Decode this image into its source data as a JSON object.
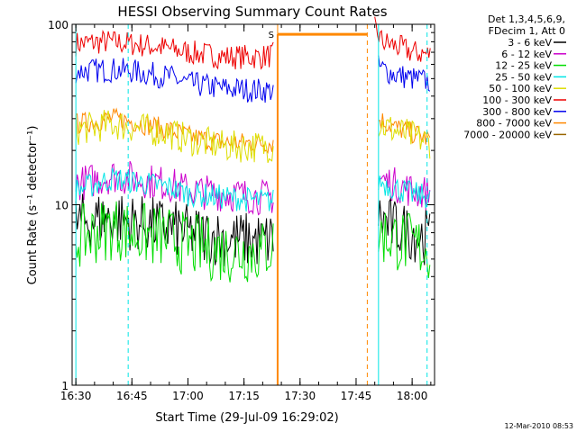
{
  "chart_data": {
    "type": "line",
    "title": "HESSI Observing Summary Count Rates",
    "xlabel": "Start Time (29-Jul-09 16:29:02)",
    "ylabel": "Count Rate (s⁻¹ detector⁻¹)",
    "yscale": "log",
    "ylim": [
      1,
      100
    ],
    "xlim": [
      "16:29",
      "18:06"
    ],
    "x_ticks": [
      "16:30",
      "16:45",
      "17:00",
      "17:15",
      "17:30",
      "17:45",
      "18:00"
    ],
    "y_ticks": [
      "1",
      "10",
      "100"
    ],
    "legend_header": [
      "Det 1,3,4,5,6,9,",
      "FDecim 1, Att 0"
    ],
    "legend_position": "right",
    "footer_date": "12-Mar-2010 08:53",
    "marker_label": "S",
    "legend": [
      {
        "name": "3 - 6 keV",
        "color": "#000000"
      },
      {
        "name": "6 - 12 keV",
        "color": "#cc00cc"
      },
      {
        "name": "12 - 25 keV",
        "color": "#00dd00"
      },
      {
        "name": "25 - 50 keV",
        "color": "#00e5e5"
      },
      {
        "name": "50 - 100 keV",
        "color": "#dddd00"
      },
      {
        "name": "100 - 300 keV",
        "color": "#ee0000"
      },
      {
        "name": "300 - 800 keV",
        "color": "#0000ee"
      },
      {
        "name": "800 - 7000 keV",
        "color": "#ff8800"
      },
      {
        "name": "7000 - 20000 keV",
        "color": "#996600"
      }
    ],
    "series": [
      {
        "name": "100 - 300 keV",
        "color": "#ee0000",
        "noise": 0.07,
        "segments": [
          {
            "x": [
              "16:30",
              "16:38",
              "16:45",
              "16:52",
              "17:00",
              "17:10",
              "17:20",
              "17:23"
            ],
            "y": [
              78,
              80,
              78,
              75,
              70,
              66,
              66,
              68
            ]
          },
          {
            "x": [
              "17:50",
              "17:52",
              "17:57",
              "18:00",
              "18:05"
            ],
            "y": [
              95,
              80,
              74,
              70,
              68
            ]
          }
        ]
      },
      {
        "name": "300 - 800 keV",
        "color": "#0000ee",
        "noise": 0.07,
        "segments": [
          {
            "x": [
              "16:30",
              "16:40",
              "16:45",
              "16:55",
              "17:00",
              "17:10",
              "17:20",
              "17:23"
            ],
            "y": [
              55,
              56,
              55,
              51,
              47,
              44,
              43,
              43
            ]
          },
          {
            "x": [
              "17:51",
              "17:55",
              "18:00",
              "18:05"
            ],
            "y": [
              58,
              53,
              50,
              48
            ]
          }
        ]
      },
      {
        "name": "800 - 7000 keV",
        "color": "#ff8800",
        "noise": 0.06,
        "segments": [
          {
            "x": [
              "16:30",
              "16:40",
              "16:45",
              "16:55",
              "17:00",
              "17:10",
              "17:20",
              "17:23"
            ],
            "y": [
              28,
              30,
              29,
              26,
              24,
              22,
              22,
              22
            ]
          },
          {
            "x": [
              "17:51",
              "17:55",
              "18:00",
              "18:05"
            ],
            "y": [
              30,
              27,
              25,
              23
            ]
          }
        ]
      },
      {
        "name": "50 - 100 keV",
        "color": "#dddd00",
        "noise": 0.09,
        "segments": [
          {
            "x": [
              "16:30",
              "16:40",
              "16:45",
              "16:55",
              "17:00",
              "17:10",
              "17:20",
              "17:23"
            ],
            "y": [
              26,
              28,
              27,
              25,
              23,
              21,
              21,
              21
            ]
          },
          {
            "x": [
              "17:51",
              "17:55",
              "18:00",
              "18:05"
            ],
            "y": [
              28,
              26,
              24,
              22
            ]
          }
        ]
      },
      {
        "name": "6 - 12 keV",
        "color": "#cc00cc",
        "noise": 0.1,
        "segments": [
          {
            "x": [
              "16:30",
              "16:40",
              "16:45",
              "16:55",
              "17:00",
              "17:10",
              "17:20",
              "17:23"
            ],
            "y": [
              13,
              14.5,
              14,
              13,
              12,
              11.5,
              11,
              11
            ]
          },
          {
            "x": [
              "17:51",
              "17:55",
              "18:00",
              "18:05"
            ],
            "y": [
              14,
              13,
              12,
              11.5
            ]
          }
        ]
      },
      {
        "name": "25 - 50 keV",
        "color": "#00e5e5",
        "noise": 0.07,
        "segments": [
          {
            "x": [
              "16:30",
              "16:40",
              "16:45",
              "16:55",
              "17:00",
              "17:10",
              "17:20",
              "17:23"
            ],
            "y": [
              12,
              14,
              13.5,
              12.5,
              11.5,
              11,
              10.5,
              10.5
            ]
          },
          {
            "x": [
              "17:51",
              "17:55",
              "18:00",
              "18:05"
            ],
            "y": [
              13.5,
              12.5,
              11.5,
              11
            ]
          }
        ]
      },
      {
        "name": "3 - 6 keV",
        "color": "#000000",
        "noise": 0.16,
        "segments": [
          {
            "x": [
              "16:30",
              "16:40",
              "16:45",
              "16:55",
              "17:00",
              "17:10",
              "17:20",
              "17:23"
            ],
            "y": [
              8,
              8.5,
              8,
              7.5,
              7,
              6.5,
              6.3,
              6.5
            ]
          },
          {
            "x": [
              "17:51",
              "17:55",
              "18:00",
              "18:05"
            ],
            "y": [
              8.5,
              7.5,
              7,
              6.5
            ]
          }
        ]
      },
      {
        "name": "12 - 25 keV",
        "color": "#00dd00",
        "noise": 0.18,
        "segments": [
          {
            "x": [
              "16:30",
              "16:40",
              "16:45",
              "16:55",
              "17:00",
              "17:10",
              "17:20",
              "17:23"
            ],
            "y": [
              6.5,
              7.5,
              7,
              6.5,
              6,
              5.5,
              5.5,
              6
            ]
          },
          {
            "x": [
              "17:51",
              "17:55",
              "18:00",
              "18:05"
            ],
            "y": [
              7,
              6.5,
              6,
              5.5
            ]
          }
        ]
      }
    ],
    "flag_lines": [
      {
        "x": "17:24",
        "y": [
          1,
          88
        ],
        "color": "#ff8800"
      },
      {
        "x": "17:24",
        "x2": "17:48",
        "y": [
          88,
          88
        ],
        "color": "#ff8800"
      },
      {
        "x": "17:48",
        "y": [
          88,
          88
        ],
        "color": "#ff8800"
      }
    ],
    "vlines": [
      {
        "x": "16:30",
        "color": "#00e5e5",
        "dash": false
      },
      {
        "x": "16:44",
        "color": "#00e5e5",
        "dash": true
      },
      {
        "x": "17:24",
        "color": "#ff8800",
        "dash": false
      },
      {
        "x": "17:48",
        "color": "#ff8800",
        "dash": true
      },
      {
        "x": "17:51",
        "color": "#00e5e5",
        "dash": false
      },
      {
        "x": "18:04",
        "color": "#00e5e5",
        "dash": true
      }
    ]
  }
}
